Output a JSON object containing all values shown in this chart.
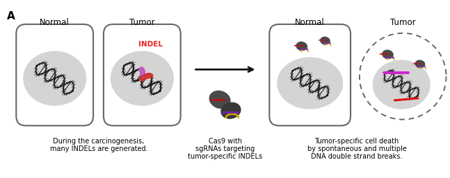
{
  "title_label": "A",
  "bg_color": "#ffffff",
  "cell_outline_color": "#666666",
  "cell_bg_color": "#ffffff",
  "nucleus_color": "#d4d4d4",
  "dna_color": "#1a1a1a",
  "indel_pink_color": "#cc55cc",
  "indel_red_color": "#dd2222",
  "indel_label_color": "#ee2222",
  "cas9_body_color": "#4a4a4a",
  "cas9_guide_yellow": "#ccaa00",
  "cas9_guide_red": "#bb1111",
  "cas9_guide_purple": "#7722aa",
  "arrow_color": "#111111",
  "dashed_circle_color": "#666666",
  "text_normal": "Normal",
  "text_tumor": "Tumor",
  "text_during": "During the carcinogenesis,",
  "text_many": "many INDELs are generated.",
  "text_cas9_line1": "Cas9 with",
  "text_cas9_line2": "sgRNAs targeting",
  "text_cas9_line3": "tumor-specific INDELs",
  "text_result_line1": "Tumor-specific cell death",
  "text_result_line2": "by spontaneous and multiple",
  "text_result_line3": "DNA double strand breaks.",
  "font_size_label": 11,
  "font_size_header": 8.5,
  "font_size_body": 7.0
}
